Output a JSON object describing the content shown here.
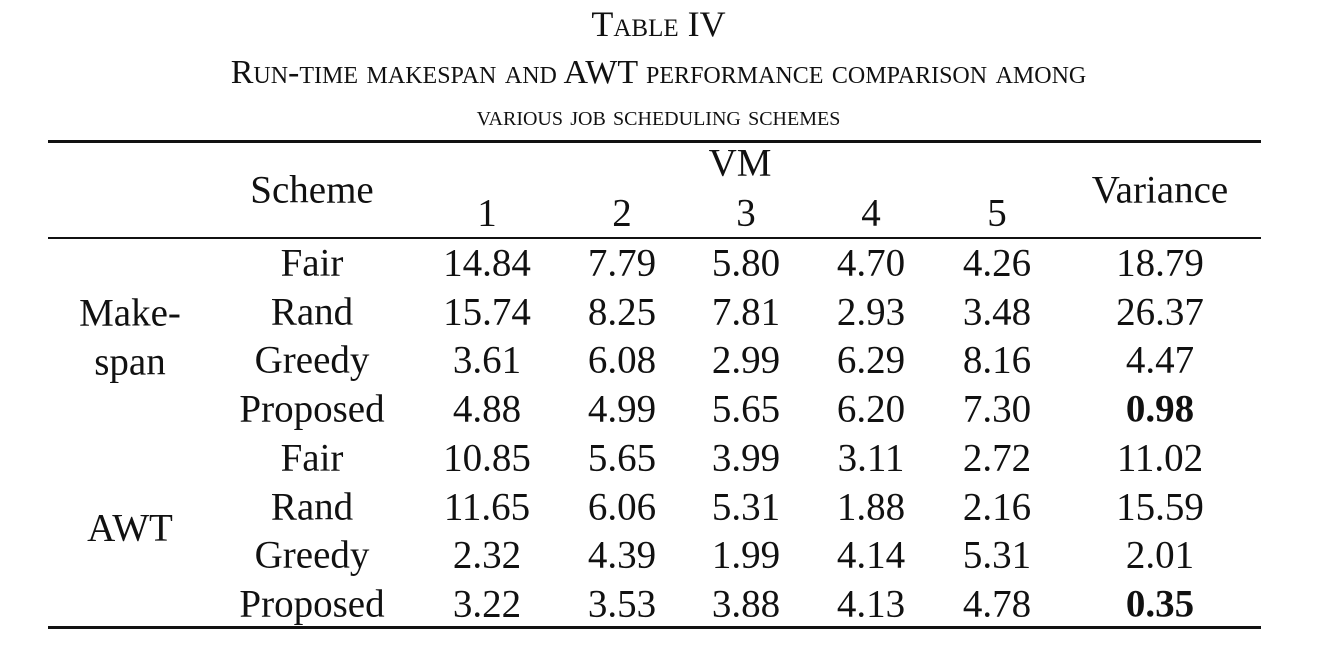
{
  "caption": {
    "label": "Table IV",
    "title_line1": "Run-time makespan and AWT performance comparison among",
    "title_line2": "various job scheduling schemes"
  },
  "header": {
    "scheme": "Scheme",
    "vm": "VM",
    "vm_columns": [
      "1",
      "2",
      "3",
      "4",
      "5"
    ],
    "variance": "Variance"
  },
  "groups": [
    {
      "label_lines": [
        "Make-",
        "span"
      ],
      "rows": [
        {
          "scheme": "Fair",
          "vm": [
            "14.84",
            "7.79",
            "5.80",
            "4.70",
            "4.26"
          ],
          "variance": "18.79",
          "best": false
        },
        {
          "scheme": "Rand",
          "vm": [
            "15.74",
            "8.25",
            "7.81",
            "2.93",
            "3.48"
          ],
          "variance": "26.37",
          "best": false
        },
        {
          "scheme": "Greedy",
          "vm": [
            "3.61",
            "6.08",
            "2.99",
            "6.29",
            "8.16"
          ],
          "variance": "4.47",
          "best": false
        },
        {
          "scheme": "Proposed",
          "vm": [
            "4.88",
            "4.99",
            "5.65",
            "6.20",
            "7.30"
          ],
          "variance": "0.98",
          "best": true
        }
      ]
    },
    {
      "label_lines": [
        "AWT"
      ],
      "rows": [
        {
          "scheme": "Fair",
          "vm": [
            "10.85",
            "5.65",
            "3.99",
            "3.11",
            "2.72"
          ],
          "variance": "11.02",
          "best": false
        },
        {
          "scheme": "Rand",
          "vm": [
            "11.65",
            "6.06",
            "5.31",
            "1.88",
            "2.16"
          ],
          "variance": "15.59",
          "best": false
        },
        {
          "scheme": "Greedy",
          "vm": [
            "2.32",
            "4.39",
            "1.99",
            "4.14",
            "5.31"
          ],
          "variance": "2.01",
          "best": false
        },
        {
          "scheme": "Proposed",
          "vm": [
            "3.22",
            "3.53",
            "3.88",
            "4.13",
            "4.78"
          ],
          "variance": "0.35",
          "best": true
        }
      ]
    }
  ]
}
